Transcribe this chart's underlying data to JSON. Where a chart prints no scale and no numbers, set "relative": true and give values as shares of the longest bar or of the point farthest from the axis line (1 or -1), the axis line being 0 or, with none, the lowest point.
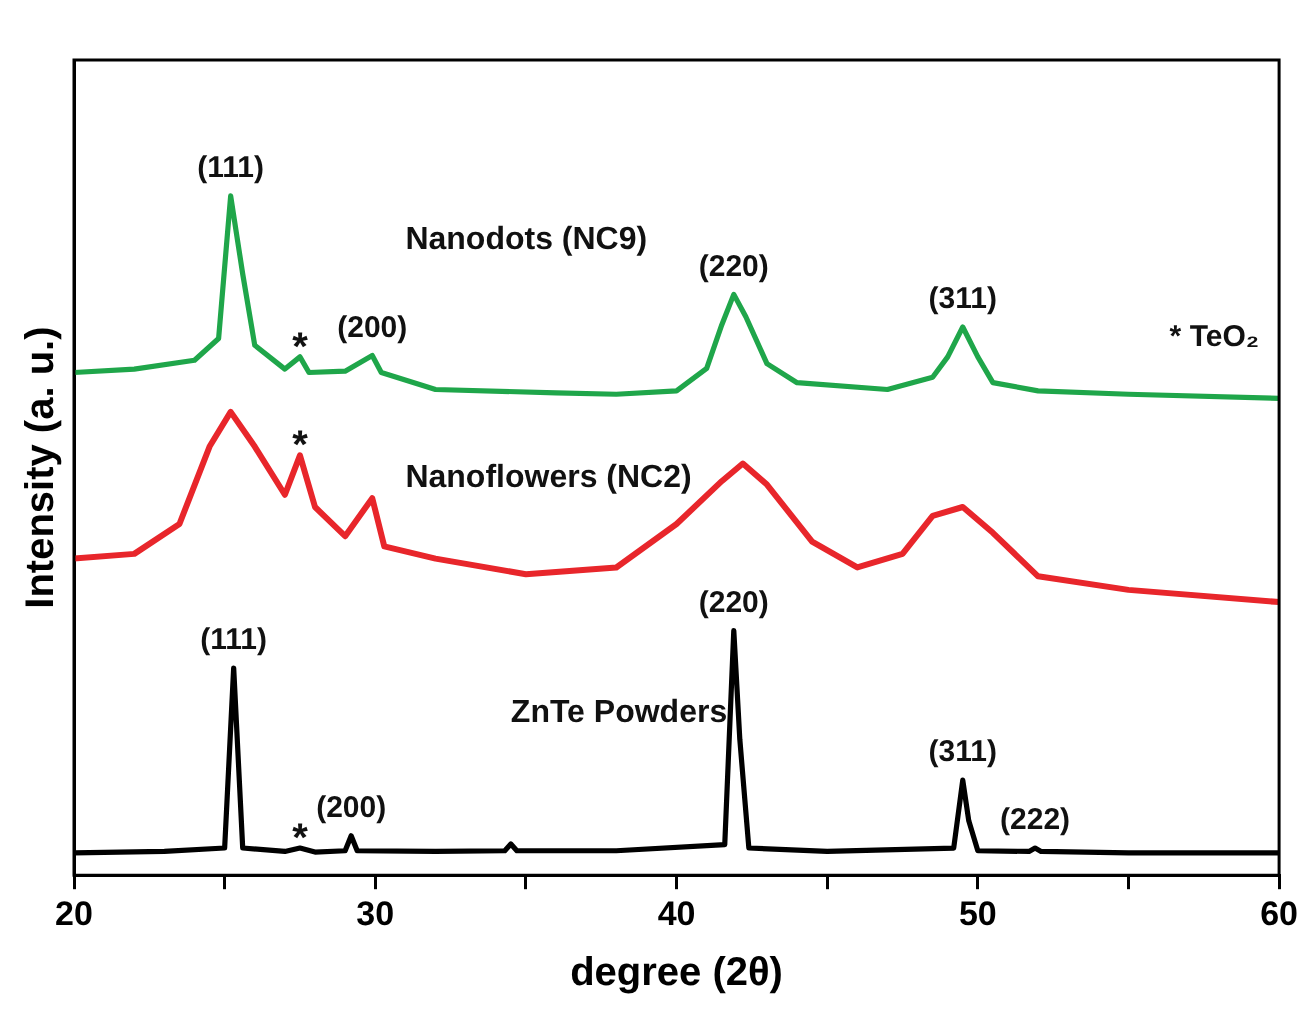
{
  "chart_data": {
    "type": "line",
    "relative": true,
    "xlabel": "degree (2θ)",
    "ylabel": "Intensity (a. u.)",
    "xlim": [
      20,
      60
    ],
    "xticks": [
      20,
      {
        "value": 25,
        "label": null
      },
      30,
      {
        "value": 35,
        "label": null
      },
      40,
      {
        "value": 45,
        "label": null
      },
      50,
      {
        "value": 55,
        "label": null
      },
      60
    ],
    "grid": false,
    "legend": false,
    "marker": "none",
    "line_style": "solid",
    "series": [
      {
        "name": "Nanodots (NC9)",
        "color": "#1fa64a",
        "x": [
          20,
          22,
          24,
          24.8,
          25.2,
          25.6,
          26,
          27,
          27.5,
          27.8,
          29,
          29.9,
          30.2,
          32,
          36,
          38,
          40,
          41,
          41.5,
          41.9,
          42.3,
          43,
          44,
          47,
          48.5,
          49,
          49.5,
          50,
          50.5,
          52,
          55,
          60
        ],
        "values": [
          0.74,
          0.745,
          0.758,
          0.79,
          1.0,
          0.885,
          0.78,
          0.745,
          0.763,
          0.74,
          0.742,
          0.765,
          0.74,
          0.715,
          0.71,
          0.708,
          0.713,
          0.746,
          0.81,
          0.855,
          0.822,
          0.753,
          0.725,
          0.715,
          0.733,
          0.763,
          0.807,
          0.763,
          0.725,
          0.713,
          0.708,
          0.702
        ]
      },
      {
        "name": "Nanoflowers (NC2)",
        "color": "#e8262b",
        "x": [
          20,
          22,
          23.5,
          24.5,
          25.2,
          26,
          27,
          27.5,
          28,
          29,
          29.9,
          30.3,
          32,
          35,
          38,
          40,
          41.5,
          42.2,
          43,
          44.5,
          46,
          47.5,
          48.5,
          49.5,
          50.5,
          52,
          55,
          60
        ],
        "values": [
          0.466,
          0.473,
          0.517,
          0.631,
          0.682,
          0.631,
          0.56,
          0.618,
          0.542,
          0.499,
          0.555,
          0.484,
          0.466,
          0.443,
          0.453,
          0.517,
          0.58,
          0.606,
          0.575,
          0.491,
          0.453,
          0.473,
          0.529,
          0.542,
          0.504,
          0.44,
          0.42,
          0.402
        ]
      },
      {
        "name": "ZnTe Powders",
        "color": "#000000",
        "x": [
          20,
          23,
          25.0,
          25.3,
          25.6,
          27,
          27.5,
          28,
          29,
          29.2,
          29.4,
          32,
          34.3,
          34.5,
          34.7,
          38,
          41.6,
          41.9,
          42.1,
          42.4,
          45,
          49.2,
          49.5,
          49.7,
          50,
          51.7,
          51.9,
          52.1,
          55,
          60
        ],
        "values": [
          0.033,
          0.035,
          0.04,
          0.305,
          0.04,
          0.035,
          0.04,
          0.034,
          0.036,
          0.058,
          0.036,
          0.035,
          0.036,
          0.046,
          0.036,
          0.036,
          0.045,
          0.36,
          0.2,
          0.04,
          0.035,
          0.04,
          0.14,
          0.08,
          0.036,
          0.035,
          0.04,
          0.035,
          0.033,
          0.033
        ]
      }
    ],
    "annotations": [
      {
        "text": "(111)",
        "x": 25.2,
        "y": 1.0
      },
      {
        "text": "*",
        "x": 27.5,
        "y": 0.763
      },
      {
        "text": "(200)",
        "x": 29.9,
        "y": 0.765
      },
      {
        "text": "(220)",
        "x": 41.9,
        "y": 0.855
      },
      {
        "text": "(311)",
        "x": 49.5,
        "y": 0.807
      },
      {
        "text": "*",
        "x": 27.5,
        "y": 0.618
      },
      {
        "text": "(111)",
        "x": 25.3,
        "y": 0.305
      },
      {
        "text": "*",
        "x": 27.5,
        "y": 0.04
      },
      {
        "text": "(200)",
        "x": 29.2,
        "y": 0.058
      },
      {
        "text": "(220)",
        "x": 41.9,
        "y": 0.36
      },
      {
        "text": "(311)",
        "x": 49.5,
        "y": 0.14
      },
      {
        "text": "(222)",
        "x": 51.9,
        "y": 0.04
      },
      "* TeO₂"
    ]
  }
}
